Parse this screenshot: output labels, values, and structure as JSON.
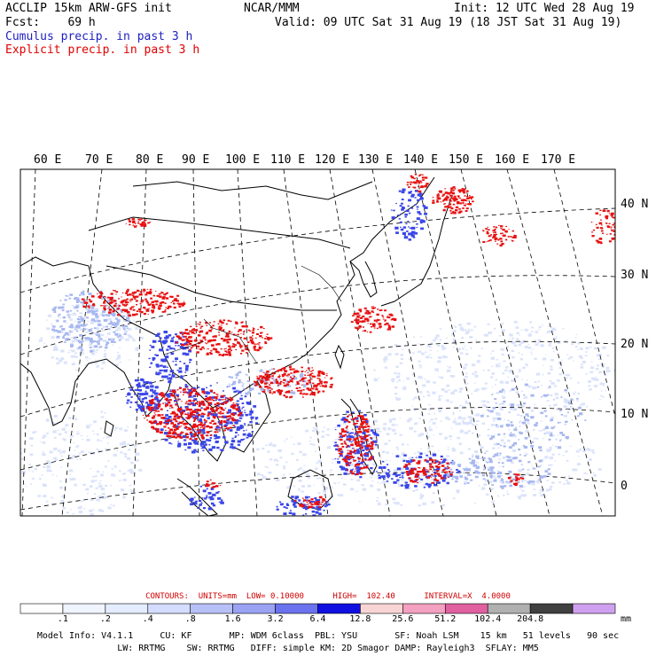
{
  "header": {
    "line1_left": "ACCLIP 15km ARW-GFS init",
    "line1_center": "NCAR/MMM",
    "line1_right": "Init: 12 UTC Wed 28 Aug 19",
    "line2_left": "Fcst:    69 h",
    "line2_right": "Valid: 09 UTC Sat 31 Aug 19 (18 JST Sat 31 Aug 19)",
    "cumulus_label": "Cumulus precip. in past 3 h",
    "explicit_label": "Explicit precip. in past 3 h"
  },
  "map": {
    "lon_labels": [
      "60 E",
      "70 E",
      "80 E",
      "90 E",
      "100 E",
      "110 E",
      "120 E",
      "130 E",
      "140 E",
      "150 E",
      "160 E",
      "170 E"
    ],
    "lat_labels": [
      "40 N",
      "30 N",
      "20 N",
      "10 N",
      "0"
    ],
    "colors": {
      "cumulus": "#3a46e8",
      "cumulus_light": "#a8b8f0",
      "explicit": "#e81010",
      "coast": "#000000",
      "grid": "#000000"
    }
  },
  "legend": {
    "contours": "CONTOURS:  UNITS=mm  LOW= 0.10000      HIGH=  102.40      INTERVAL=X  4.0000",
    "unit": "mm",
    "bins": [
      {
        "label": ".1",
        "color": "#ffffff"
      },
      {
        "label": ".2",
        "color": "#f0f4ff"
      },
      {
        "label": ".4",
        "color": "#e4ecff"
      },
      {
        "label": ".8",
        "color": "#d4dcff"
      },
      {
        "label": "1.6",
        "color": "#b8c0f8"
      },
      {
        "label": "3.2",
        "color": "#9aa2f4"
      },
      {
        "label": "6.4",
        "color": "#6a72ee"
      },
      {
        "label": "12.8",
        "color": "#1010e0"
      },
      {
        "label": "25.6",
        "color": "#f8d4d4"
      },
      {
        "label": "51.2",
        "color": "#f4a0c0"
      },
      {
        "label": "102.4",
        "color": "#e060a0"
      },
      {
        "label": "204.8",
        "color": "#b0b0b0"
      },
      {
        "label": "",
        "color": "#404040"
      },
      {
        "label": "",
        "color": "#d0a0f0"
      }
    ]
  },
  "model_info": {
    "line1": "Model Info: V4.1.1     CU: KF       MP: WDM 6class  PBL: YSU       SF: Noah LSM    15 km   51 levels   90 sec",
    "line2": "LW: RRTMG    SW: RRTMG   DIFF: simple KM: 2D Smagor DAMP: Rayleigh3  SFLAY: MM5"
  }
}
